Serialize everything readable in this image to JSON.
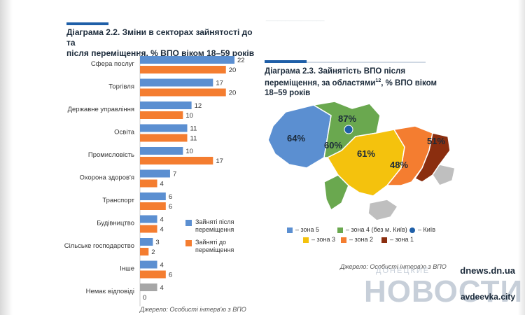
{
  "left_chart": {
    "title_line1": "Діаграма 2.2. Зміни в секторах зайнятості до та",
    "title_line2": "після переміщення, % ВПО віком 18–59 років",
    "source": "Джерело: Особисті інтерв'ю з ВПО",
    "legend_after": "Зайняті після переміщення",
    "legend_before": "Зайняті до переміщення"
  },
  "chart_data": {
    "type": "bar",
    "orientation": "horizontal",
    "categories": [
      "Сфера послуг",
      "Торгівля",
      "Державне управління",
      "Освіта",
      "Промисловість",
      "Охорона здоров'я",
      "Транспорт",
      "Будівництво",
      "Сільське господарство",
      "Інше",
      "Немає відповіді"
    ],
    "series": [
      {
        "name": "Зайняті після переміщення",
        "color": "#5b8fd1",
        "values": [
          22,
          17,
          12,
          11,
          10,
          7,
          6,
          4,
          3,
          4,
          4
        ]
      },
      {
        "name": "Зайняті до переміщення",
        "color": "#f47d30",
        "values": [
          20,
          20,
          10,
          11,
          17,
          4,
          6,
          4,
          2,
          6,
          0
        ]
      }
    ],
    "special_colors": {
      "no_answer_color": "#a6a6a6"
    },
    "xlim": [
      0,
      22
    ]
  },
  "right_map": {
    "title_line1": "Діаграма 2.3. Зайнятість ВПО після",
    "title_line2": "переміщення, за областями",
    "title_sup": "12",
    "title_line2_tail": ", % ВПО віком",
    "title_line3": "18–59 років",
    "source": "Джерело: Особисті інтерв'ю з ВПО",
    "zone_labels": {
      "zone5": "64%",
      "zone4": "60%",
      "kyiv": "87%",
      "zone3": "61%",
      "zone2": "48%",
      "zone1": "51%"
    },
    "legend": {
      "zone5": "– зона 5",
      "zone4": "– зона 4 (без м. Київ)",
      "kyiv": "– Київ",
      "zone3": "– зона 3",
      "zone2": "– зона 2",
      "zone1": "– зона 1"
    },
    "colors": {
      "zone5": "#5b8fd1",
      "zone4": "#6aa84f",
      "kyiv": "#1f5fa8",
      "zone3": "#f4c20d",
      "zone2": "#f47d30",
      "zone1": "#8b2e0f",
      "other": "#bfbfbf"
    }
  },
  "watermark": {
    "site": "dnews.dn.ua",
    "sub": "ДОНЕЦКИЕ",
    "news": "НОВОСТИ",
    "city": "avdeevka.city"
  }
}
